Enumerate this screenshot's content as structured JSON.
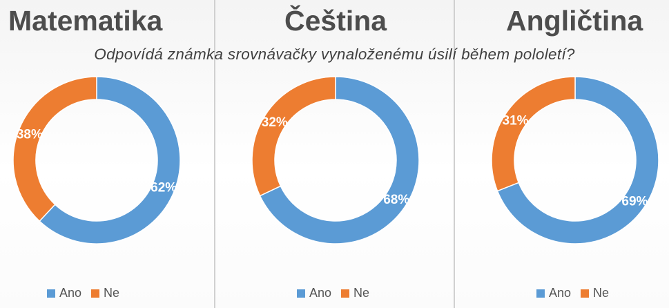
{
  "subtitle": "Odpovídá známka srovnávačky vynaloženému úsilí během pololetí?",
  "colors": {
    "ano": "#5b9bd5",
    "ne": "#ed7d31"
  },
  "legend": {
    "ano": "Ano",
    "ne": "Ne"
  },
  "chart_data": [
    {
      "type": "pie",
      "title": "Matematika",
      "categories": [
        "Ano",
        "Ne"
      ],
      "values": [
        62,
        38
      ],
      "labels": [
        "62%",
        "38%"
      ]
    },
    {
      "type": "pie",
      "title": "Čeština",
      "categories": [
        "Ano",
        "Ne"
      ],
      "values": [
        68,
        32
      ],
      "labels": [
        "68%",
        "32%"
      ]
    },
    {
      "type": "pie",
      "title": "Angličtina",
      "categories": [
        "Ano",
        "Ne"
      ],
      "values": [
        69,
        31
      ],
      "labels": [
        "69%",
        "31%"
      ]
    }
  ]
}
